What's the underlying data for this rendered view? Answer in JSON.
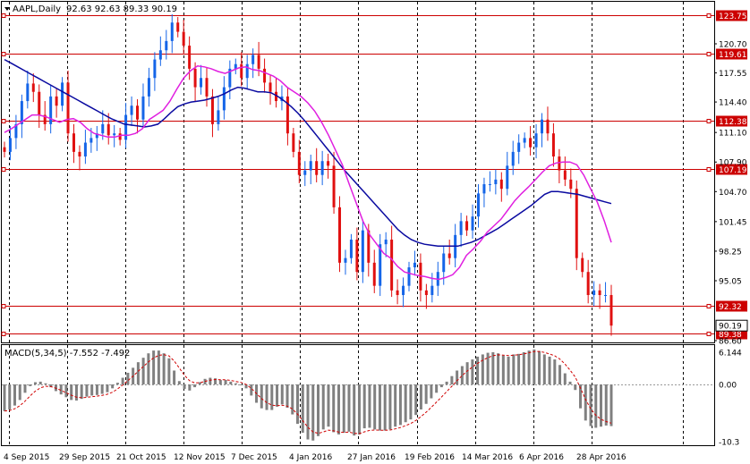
{
  "header": {
    "symbol": "AAPL,Daily",
    "ohlc": "92.63 92.63 89.33 90.19"
  },
  "macd_panel": {
    "label": "MACD(5,34,5) -7.552 -7.492",
    "axis_ticks": [
      "6.144",
      "0.00",
      "-10.3"
    ]
  },
  "colors": {
    "bull": "#1565e8",
    "bear": "#e01010",
    "ma_fast": "#e020e0",
    "ma_slow": "#0a0aa0",
    "level_line": "#cc0000",
    "histogram": "#808080",
    "signal": "#d00000"
  },
  "chart_data": {
    "type": "candlestick",
    "x_labels": [
      "4 Sep 2015",
      "29 Sep 2015",
      "21 Oct 2015",
      "12 Nov 2015",
      "7 Dec 2015",
      "4 Jan 2016",
      "27 Jan 2016",
      "19 Feb 2016",
      "14 Mar 2016",
      "6 Apr 2016",
      "28 Apr 2016"
    ],
    "y_ticks": [
      120.7,
      117.55,
      114.4,
      111.1,
      107.9,
      104.7,
      101.45,
      98.25,
      95.05,
      86.6
    ],
    "y_range": [
      86.6,
      124.9
    ],
    "levels": [
      {
        "value": 123.75,
        "label": "123.75"
      },
      {
        "value": 119.61,
        "label": "119.61"
      },
      {
        "value": 112.38,
        "label": "112.38"
      },
      {
        "value": 107.19,
        "label": "107.19"
      },
      {
        "value": 92.32,
        "label": "92.32"
      },
      {
        "value": 89.38,
        "label": "89.38"
      }
    ],
    "current_price": {
      "value": 90.19,
      "label": "90.19"
    },
    "close": [
      109,
      110.5,
      112,
      114.5,
      116.4,
      115.5,
      113,
      112,
      115,
      114,
      116.5,
      111,
      109,
      108.5,
      110,
      110.5,
      111,
      112,
      110.8,
      111,
      110.3,
      113,
      114,
      112.5,
      115,
      117,
      119,
      120,
      121,
      123,
      122,
      120.5,
      118,
      116,
      117,
      115,
      112,
      113.5,
      116,
      118,
      118.5,
      117,
      118.5,
      119.5,
      118,
      116.5,
      115.5,
      114.5,
      115,
      111,
      109,
      106.5,
      107,
      108,
      106.5,
      108,
      107.5,
      103,
      97,
      97.5,
      99.5,
      96,
      100.5,
      97,
      94.5,
      99,
      99.5,
      94,
      93.5,
      94.5,
      96.5,
      97,
      94,
      93.5,
      94.5,
      96,
      98,
      97.5,
      100,
      101.5,
      100.5,
      102,
      104.5,
      105.5,
      105.5,
      106,
      105,
      107.5,
      109,
      110,
      110.5,
      109.5,
      111,
      112.5,
      111,
      108.5,
      107,
      106,
      105,
      97.5,
      96,
      93.5,
      94,
      93.5,
      93.5,
      90.19
    ],
    "ma_fast": [
      111.1,
      111.5,
      112,
      112.5,
      113,
      113,
      112.8,
      112.5,
      112.2,
      112.5,
      112.6,
      112.2,
      111.5,
      111,
      110.8,
      110.6,
      110.6,
      110.8,
      110.8,
      111,
      111.5,
      112.5,
      113,
      113.5,
      114.5,
      115.8,
      117,
      117.8,
      118.3,
      118.2,
      118,
      117.7,
      117.5,
      117.8,
      118.1,
      118.2,
      117.9,
      117.8,
      117.5,
      117.2,
      116.7,
      116,
      115.5,
      115,
      114.3,
      113.4,
      112.2,
      110.8,
      109.2,
      107.6,
      105.5,
      103.5,
      101.5,
      100,
      99,
      98,
      97.5,
      96.6,
      96,
      95.8,
      95.6,
      95.5,
      95.3,
      95.2,
      95.4,
      95.7,
      96.5,
      97.8,
      98.5,
      99.3,
      100.3,
      101,
      101.7,
      102.7,
      103.7,
      104.5,
      105.2,
      106,
      106.8,
      107.5,
      107.8,
      107.9,
      107.9,
      107.6,
      106.5,
      105,
      103.5,
      101.5,
      99.2
    ],
    "ma_slow": [
      119,
      118.6,
      118.2,
      117.8,
      117.4,
      117,
      116.6,
      116.2,
      115.8,
      115.4,
      115,
      114.6,
      114.2,
      113.8,
      113.4,
      113.0,
      112.6,
      112.3,
      112.0,
      111.9,
      111.8,
      111.7,
      111.8,
      112,
      112.6,
      113.3,
      113.9,
      114.2,
      114.4,
      114.5,
      114.6,
      114.8,
      115.0,
      115.3,
      115.7,
      116.0,
      115.9,
      115.7,
      115.5,
      115.5,
      115.4,
      115.0,
      114.5,
      113.9,
      113.2,
      112.4,
      111.5,
      110.6,
      109.7,
      108.8,
      107.9,
      107.0,
      106.2,
      105.4,
      104.6,
      103.8,
      103.0,
      102.2,
      101.4,
      100.6,
      100.0,
      99.5,
      99.2,
      99.0,
      98.9,
      98.8,
      98.8,
      98.8,
      98.8,
      99.0,
      99.2,
      99.5,
      99.9,
      100.3,
      100.7,
      101.2,
      101.7,
      102.2,
      102.7,
      103.2,
      103.8,
      104.4,
      104.7,
      104.7,
      104.6,
      104.5,
      104.4,
      104.2,
      104.0,
      103.8,
      103.6,
      103.4
    ],
    "macd_histogram": [
      -4.8,
      -4.5,
      -3.8,
      -2.8,
      -1.5,
      -0.3,
      0.4,
      0.5,
      0.2,
      -0.5,
      -1.2,
      -1.8,
      -2.3,
      -2.8,
      -2.9,
      -2.6,
      -2.2,
      -2.0,
      -1.9,
      -1.7,
      -1.4,
      -0.7,
      0.3,
      1.2,
      2.1,
      3.0,
      4.0,
      4.8,
      5.6,
      6.1,
      6.1,
      5.6,
      4.7,
      2.5,
      0.6,
      -0.8,
      -1.1,
      -0.5,
      0.4,
      1.0,
      1.2,
      1.1,
      0.8,
      0.8,
      0.5,
      0.2,
      0,
      -0.7,
      -2.0,
      -3.3,
      -4.3,
      -4.6,
      -4.6,
      -4.0,
      -3.6,
      -4.2,
      -5.4,
      -7.1,
      -8.7,
      -9.9,
      -10.1,
      -9.3,
      -8.1,
      -7.6,
      -8.6,
      -9.0,
      -8.7,
      -8.5,
      -9.2,
      -9.0,
      -7.9,
      -7.8,
      -8.1,
      -8.3,
      -8.3,
      -8.1,
      -7.6,
      -7.3,
      -6.8,
      -6.3,
      -5.5,
      -4.5,
      -3.5,
      -2.5,
      -1.5,
      -0.5,
      0.5,
      1.5,
      2.5,
      3.3,
      4.0,
      4.5,
      5.0,
      5.4,
      5.7,
      5.8,
      5.6,
      5.2,
      5.0,
      5.4,
      5.5,
      5.8,
      6.1,
      6.3,
      6.0,
      5.4,
      5.0,
      4.5,
      3.5,
      2.0,
      0.5,
      -1.0,
      -4.3,
      -6.5,
      -7.5,
      -7.8,
      -7.6,
      -7.4,
      -7.5
    ]
  }
}
